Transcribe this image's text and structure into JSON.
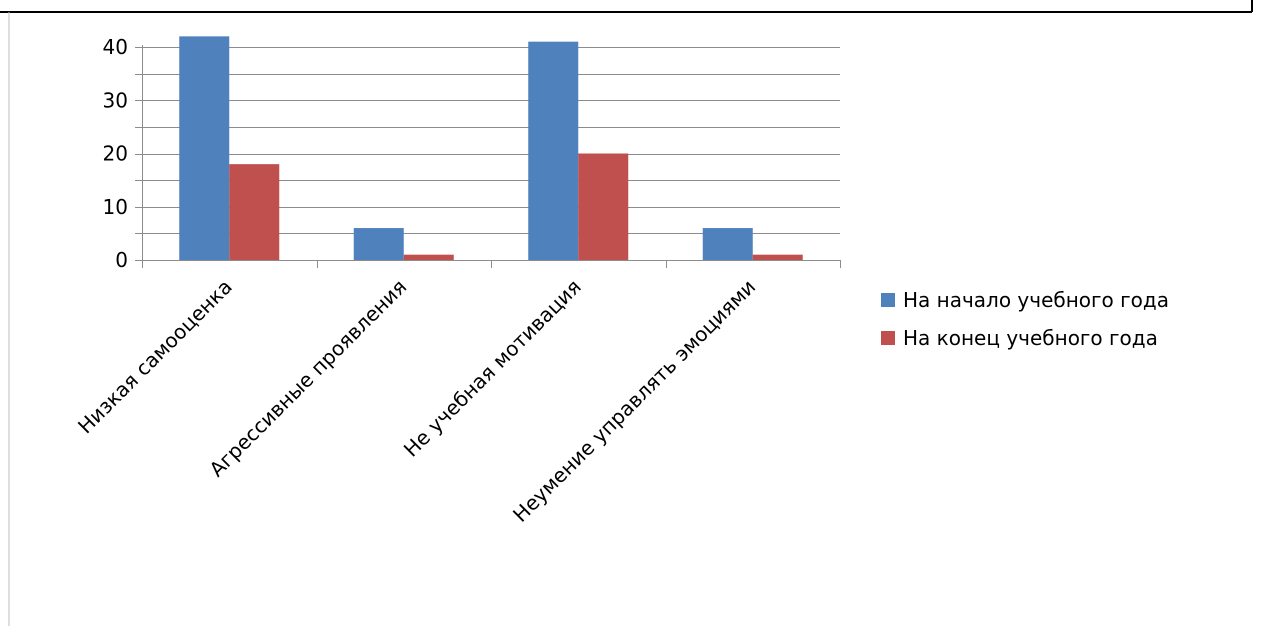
{
  "chart_data": {
    "type": "bar",
    "categories": [
      "Низкая самооценка",
      "Агрессивные проявления",
      "Не учебная мотивация",
      "Неумение управлять эмоциями"
    ],
    "series": [
      {
        "name": "На начало учебного года",
        "color": "#4F81BD",
        "values": [
          42,
          6,
          41,
          6
        ]
      },
      {
        "name": "На конец учебного года",
        "color": "#C0504D",
        "values": [
          18,
          1,
          20,
          1
        ]
      }
    ],
    "yticks": [
      0,
      10,
      20,
      30,
      40
    ],
    "ylim": [
      0,
      40
    ],
    "grid": true,
    "minor_gridlines": true,
    "legend_position": "right",
    "colors": {
      "gridline": "#8C8C8C",
      "axis": "#8C8C8C",
      "border": "#000000"
    }
  }
}
